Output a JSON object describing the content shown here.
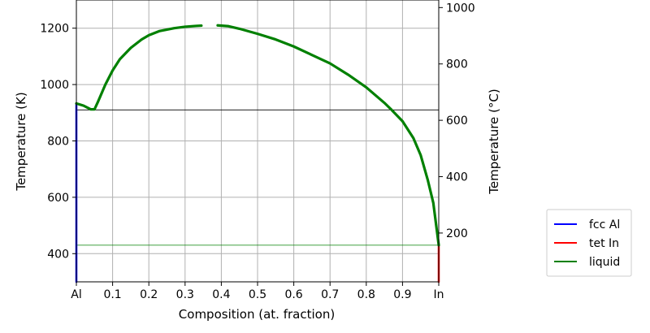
{
  "chart_data": {
    "type": "line",
    "xlabel": "Composition (at. fraction)",
    "ylabel": "Temperature (K)",
    "ylabel_right": "Temperature (°C)",
    "xlim": [
      0,
      1
    ],
    "ylim": [
      300,
      1300
    ],
    "ylim_right_celsius": [
      26.85,
      1026.85
    ],
    "grid": true,
    "x_ticks": [
      0,
      0.1,
      0.2,
      0.3,
      0.4,
      0.5,
      0.6,
      0.7,
      0.8,
      0.9,
      1
    ],
    "x_tick_labels": [
      "Al",
      "0.1",
      "0.2",
      "0.3",
      "0.4",
      "0.5",
      "0.6",
      "0.7",
      "0.8",
      "0.9",
      "In"
    ],
    "y_ticks": [
      400,
      600,
      800,
      1000,
      1200
    ],
    "y_tick_labels": [
      "400",
      "600",
      "800",
      "1000",
      "1200"
    ],
    "y_right_ticks": [
      200,
      400,
      600,
      800,
      1000
    ],
    "y_right_tick_labels": [
      "200",
      "400",
      "600",
      "800",
      "1000"
    ],
    "legend": {
      "placement": "outside-right",
      "entries": [
        {
          "label": "fcc Al",
          "color": "#0000ff"
        },
        {
          "label": "tet In",
          "color": "#ff0000"
        },
        {
          "label": "liquid",
          "color": "#008000"
        }
      ]
    },
    "series": [
      {
        "name": "fcc Al",
        "color": "#0000ff",
        "points": [
          [
            0.0,
            300
          ],
          [
            0.0,
            933
          ]
        ]
      },
      {
        "name": "tet In",
        "color": "#ff0000",
        "points": [
          [
            1.0,
            300
          ],
          [
            1.0,
            430
          ]
        ]
      },
      {
        "name": "liquid",
        "color": "#008000",
        "segments": [
          [
            [
              0.0,
              933
            ],
            [
              0.02,
              925
            ],
            [
              0.04,
              912
            ],
            [
              0.05,
              912
            ],
            [
              0.06,
              940
            ],
            [
              0.08,
              1000
            ],
            [
              0.1,
              1050
            ],
            [
              0.12,
              1090
            ],
            [
              0.15,
              1130
            ],
            [
              0.18,
              1160
            ],
            [
              0.2,
              1175
            ],
            [
              0.23,
              1190
            ],
            [
              0.27,
              1200
            ],
            [
              0.3,
              1205
            ],
            [
              0.33,
              1208
            ],
            [
              0.345,
              1209
            ]
          ],
          [
            [
              0.39,
              1210
            ],
            [
              0.42,
              1207
            ],
            [
              0.45,
              1198
            ],
            [
              0.5,
              1180
            ],
            [
              0.55,
              1160
            ],
            [
              0.6,
              1135
            ],
            [
              0.65,
              1105
            ],
            [
              0.7,
              1075
            ],
            [
              0.75,
              1035
            ],
            [
              0.8,
              990
            ],
            [
              0.85,
              935
            ],
            [
              0.87,
              910
            ],
            [
              0.9,
              870
            ],
            [
              0.93,
              810
            ],
            [
              0.95,
              750
            ],
            [
              0.97,
              660
            ],
            [
              0.985,
              580
            ],
            [
              0.995,
              480
            ],
            [
              1.0,
              430
            ]
          ]
        ]
      }
    ],
    "horizontal_lines": [
      {
        "y": 910,
        "x_range": [
          0,
          1
        ],
        "color": "#000000"
      },
      {
        "y": 430,
        "x_range": [
          0,
          1
        ],
        "color": "#008000"
      }
    ]
  }
}
